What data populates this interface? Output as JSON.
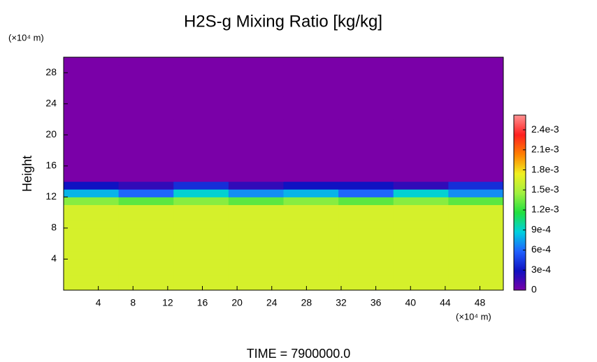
{
  "chart_data": {
    "type": "heatmap",
    "title": "H2S-g Mixing Ratio [kg/kg]",
    "y_label": "Height",
    "y_unit": "(×10⁴ m)",
    "x_unit": "(×10⁴ m)",
    "footer": "TIME = 7900000.0",
    "xlim": [
      0,
      50.7
    ],
    "xticks": [
      4,
      8,
      12,
      16,
      20,
      24,
      28,
      32,
      36,
      40,
      44,
      48
    ],
    "ylim": [
      0,
      30
    ],
    "yticks": [
      4,
      8,
      12,
      16,
      20,
      24,
      28
    ],
    "zlim": [
      0,
      0.00262
    ],
    "zticks": [
      0,
      {
        "value": 0.0003,
        "label": "3e-4"
      },
      {
        "value": 0.0006,
        "label": "6e-4"
      },
      {
        "value": 0.0009,
        "label": "9e-4"
      },
      {
        "value": 0.0012,
        "label": "1.2e-3"
      },
      {
        "value": 0.0015,
        "label": "1.5e-3"
      },
      {
        "value": 0.0018,
        "label": "1.8e-3"
      },
      {
        "value": 0.0021,
        "label": "2.1e-3"
      },
      {
        "value": 0.0024,
        "label": "2.4e-3"
      }
    ],
    "colors": [
      "#7a00a8",
      "#1010c0",
      "#2060ff",
      "#00d0e0",
      "#20e040",
      "#a0f040",
      "#f0f020",
      "#ff8000",
      "#ff2020",
      "#ff9090"
    ],
    "z": [
      [
        0.00165,
        0.00165,
        0.00165,
        0.00165,
        0.00165,
        0.00165,
        0.00165,
        0.00165
      ],
      [
        0.00165,
        0.00165,
        0.00165,
        0.00165,
        0.00165,
        0.00165,
        0.00165,
        0.00165
      ],
      [
        0.00165,
        0.00165,
        0.00165,
        0.00165,
        0.00165,
        0.00165,
        0.00165,
        0.00165
      ],
      [
        0.00165,
        0.00165,
        0.00165,
        0.00165,
        0.00165,
        0.00165,
        0.00165,
        0.00165
      ],
      [
        0.00165,
        0.00165,
        0.00165,
        0.00165,
        0.00165,
        0.00165,
        0.00165,
        0.00165
      ],
      [
        0.00165,
        0.00165,
        0.00165,
        0.00165,
        0.00165,
        0.00165,
        0.00165,
        0.00165
      ],
      [
        0.00165,
        0.00165,
        0.00165,
        0.00165,
        0.00165,
        0.00165,
        0.00165,
        0.00165
      ],
      [
        0.00165,
        0.00165,
        0.00165,
        0.00165,
        0.00165,
        0.00165,
        0.00165,
        0.00165
      ],
      [
        0.00165,
        0.00165,
        0.00165,
        0.00165,
        0.00165,
        0.00165,
        0.00165,
        0.00165
      ],
      [
        0.00165,
        0.00165,
        0.00165,
        0.00165,
        0.00165,
        0.00165,
        0.00165,
        0.00165
      ],
      [
        0.00165,
        0.00165,
        0.00165,
        0.00165,
        0.00165,
        0.00165,
        0.00165,
        0.00165
      ],
      [
        0.0014,
        0.0013,
        0.0014,
        0.0013,
        0.0014,
        0.0013,
        0.0014,
        0.0013
      ],
      [
        0.0008,
        0.0006,
        0.0009,
        0.0007,
        0.0008,
        0.0006,
        0.0009,
        0.0007
      ],
      [
        0.0003,
        0.0002,
        0.0004,
        0.0002,
        0.0003,
        0.0003,
        0.0002,
        0.0004
      ],
      [
        0,
        0,
        0,
        0,
        0,
        0,
        0,
        0
      ],
      [
        0,
        0,
        0,
        0,
        0,
        0,
        0,
        0
      ],
      [
        0,
        0,
        0,
        0,
        0,
        0,
        0,
        0
      ],
      [
        0,
        0,
        0,
        0,
        0,
        0,
        0,
        0
      ],
      [
        0,
        0,
        0,
        0,
        0,
        0,
        0,
        0
      ],
      [
        0,
        0,
        0,
        0,
        0,
        0,
        0,
        0
      ],
      [
        0,
        0,
        0,
        0,
        0,
        0,
        0,
        0
      ],
      [
        0,
        0,
        0,
        0,
        0,
        0,
        0,
        0
      ],
      [
        0,
        0,
        0,
        0,
        0,
        0,
        0,
        0
      ],
      [
        0,
        0,
        0,
        0,
        0,
        0,
        0,
        0
      ],
      [
        0,
        0,
        0,
        0,
        0,
        0,
        0,
        0
      ],
      [
        0,
        0,
        0,
        0,
        0,
        0,
        0,
        0
      ],
      [
        0,
        0,
        0,
        0,
        0,
        0,
        0,
        0
      ],
      [
        0,
        0,
        0,
        0,
        0,
        0,
        0,
        0
      ],
      [
        0,
        0,
        0,
        0,
        0,
        0,
        0,
        0
      ],
      [
        0,
        0,
        0,
        0,
        0,
        0,
        0,
        0
      ]
    ]
  }
}
